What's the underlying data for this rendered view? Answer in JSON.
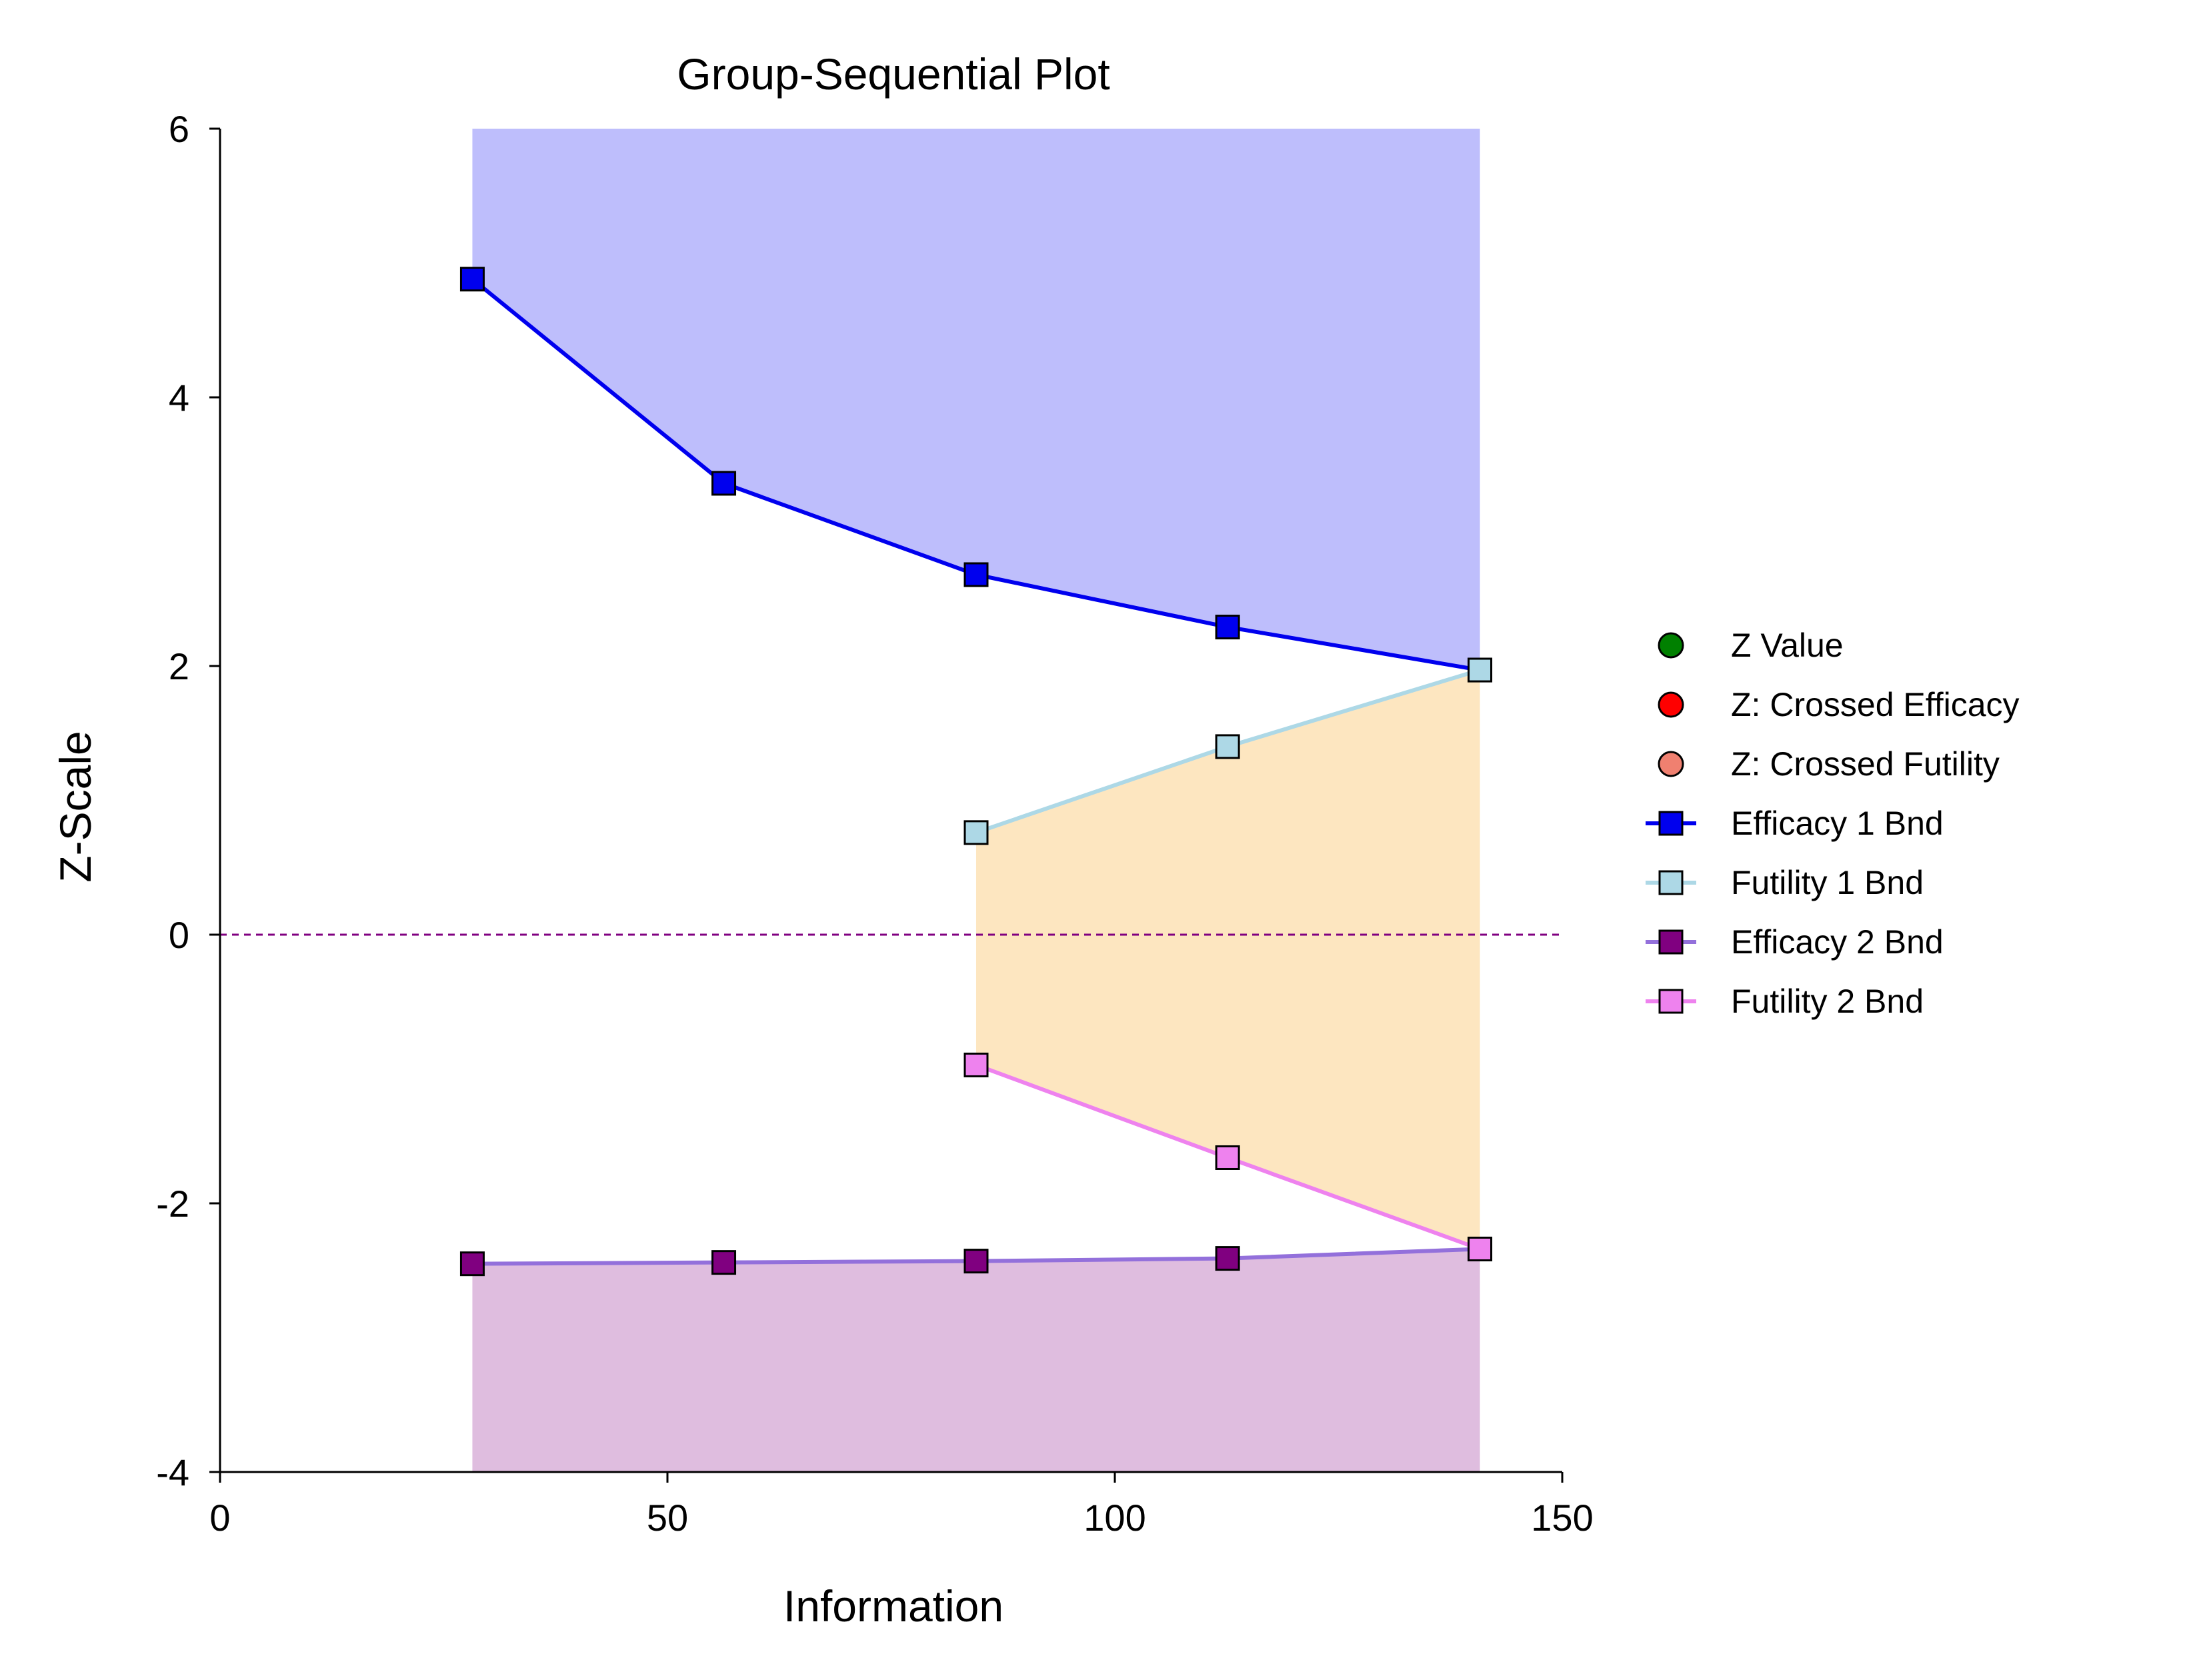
{
  "chart_data": {
    "type": "line",
    "title": "Group-Sequential Plot",
    "xlabel": "Information",
    "ylabel": "Z-Scale",
    "xlim": [
      0,
      150
    ],
    "ylim": [
      -4,
      6
    ],
    "xticks": [
      0,
      50,
      100,
      150
    ],
    "yticks": [
      -4,
      -2,
      0,
      2,
      4,
      6
    ],
    "grid": false,
    "legend_position": "right",
    "reference_line": {
      "y": 0,
      "color": "#800080",
      "style": "dashed"
    },
    "series": [
      {
        "name": "Z Value",
        "kind": "point",
        "marker": "circle",
        "color": "#008000",
        "x": [],
        "y": []
      },
      {
        "name": "Z: Crossed Efficacy",
        "kind": "point",
        "marker": "circle",
        "color": "#FF0000",
        "x": [],
        "y": []
      },
      {
        "name": "Z: Crossed Futility",
        "kind": "point",
        "marker": "circle",
        "color": "#F08070",
        "x": [],
        "y": []
      },
      {
        "name": "Efficacy 1 Bnd",
        "kind": "line",
        "marker": "square",
        "color": "#0000EE",
        "line_color": "#0000EE",
        "x": [
          28.2,
          56.3,
          84.5,
          112.6,
          140.8
        ],
        "y": [
          4.88,
          3.36,
          2.68,
          2.29,
          1.97
        ]
      },
      {
        "name": "Futility 1 Bnd",
        "kind": "line",
        "marker": "square",
        "color": "#ADD8E6",
        "line_color": "#ADD8E6",
        "x": [
          84.5,
          112.6,
          140.8
        ],
        "y": [
          0.76,
          1.4,
          1.97
        ]
      },
      {
        "name": "Efficacy 2 Bnd",
        "kind": "line",
        "marker": "square",
        "color": "#800080",
        "line_color": "#9370DB",
        "x": [
          28.2,
          56.3,
          84.5,
          112.6,
          140.8
        ],
        "y": [
          -2.45,
          -2.44,
          -2.43,
          -2.41,
          -2.34
        ]
      },
      {
        "name": "Futility 2 Bnd",
        "kind": "line",
        "marker": "square",
        "color": "#EE82EE",
        "line_color": "#EE82EE",
        "x": [
          84.5,
          112.6,
          140.8
        ],
        "y": [
          -0.97,
          -1.66,
          -2.34
        ]
      }
    ],
    "regions": [
      {
        "role": "efficacy-upper",
        "color": "#BEBEFC",
        "x": [
          28.2,
          56.3,
          84.5,
          112.6,
          140.8
        ],
        "lower": [
          4.88,
          3.36,
          2.68,
          2.29,
          1.97
        ],
        "upper": [
          6,
          6,
          6,
          6,
          6
        ]
      },
      {
        "role": "futility",
        "color": "#FDE6C0",
        "x": [
          84.5,
          112.6,
          140.8
        ],
        "lower": [
          -0.97,
          -1.66,
          -2.34
        ],
        "upper": [
          0.76,
          1.4,
          1.97
        ]
      },
      {
        "role": "efficacy-lower",
        "color": "#DFBDDF",
        "x": [
          28.2,
          56.3,
          84.5,
          112.6,
          140.8
        ],
        "lower": [
          -4,
          -4,
          -4,
          -4,
          -4
        ],
        "upper": [
          -2.45,
          -2.44,
          -2.43,
          -2.41,
          -2.34
        ]
      }
    ]
  }
}
